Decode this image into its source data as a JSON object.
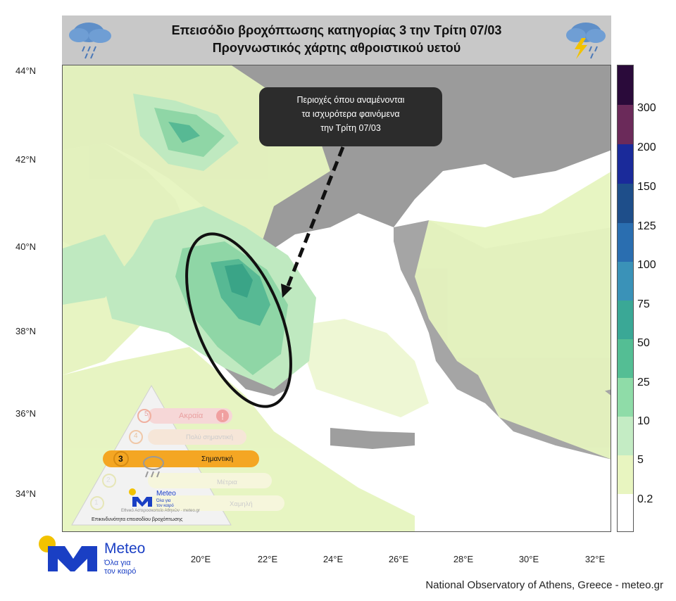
{
  "header": {
    "title_line1": "Επεισόδιο βροχόπτωσης κατηγορίας 3 την Τρίτη 07/03",
    "title_line2": "Προγνωστικός χάρτης αθροιστικού υετού",
    "left_icon": "rain-cloud-icon",
    "right_icon": "thunderstorm-cloud-icon"
  },
  "axes": {
    "lat_labels": [
      "44°N",
      "42°N",
      "40°N",
      "38°N",
      "36°N",
      "34°N"
    ],
    "lon_labels": [
      "20°E",
      "22°E",
      "24°E",
      "26°E",
      "28°E",
      "30°E",
      "32°E"
    ]
  },
  "callout": {
    "line1": "Περιοχές όπου αναμένονται",
    "line2": "τα ισχυρότερα φαινόμενα",
    "line3": "την Τρίτη 07/03"
  },
  "colorbar": {
    "labels": [
      "300",
      "200",
      "150",
      "125",
      "100",
      "75",
      "50",
      "25",
      "10",
      "5",
      "0.2"
    ],
    "colors": [
      "#2a0a3a",
      "#6b2a5a",
      "#1a2a9a",
      "#1e4e8a",
      "#2a6eb0",
      "#3a92b8",
      "#3aa896",
      "#54be94",
      "#8fdca8",
      "#c4ecc4",
      "#e8f5c0",
      "#ffffff"
    ]
  },
  "hazard_pyramid": {
    "levels": [
      {
        "number": "5",
        "label": "Ακραία"
      },
      {
        "number": "4",
        "label": "Πολύ σημαντική"
      },
      {
        "number": "3",
        "label": "Σημαντική"
      },
      {
        "number": "2",
        "label": "Μέτρια"
      },
      {
        "number": "1",
        "label": "Χαμηλή"
      }
    ],
    "active_level": "3",
    "caption": "Επικινδυνότητα επεισοδίου βροχόπτωσης",
    "brand": "Meteo",
    "brand_sub": "τον καιρό",
    "brand_tagline": "Όλα για",
    "institute": "Εθνικό Αστεροσκοπείο Αθηνών · meteo.gr"
  },
  "logo": {
    "brand": "Meteo",
    "tagline_line1": "Όλα για",
    "tagline_line2": "τον καιρό"
  },
  "footer": {
    "credit": "National Observatory of Athens, Greece - meteo.gr"
  }
}
